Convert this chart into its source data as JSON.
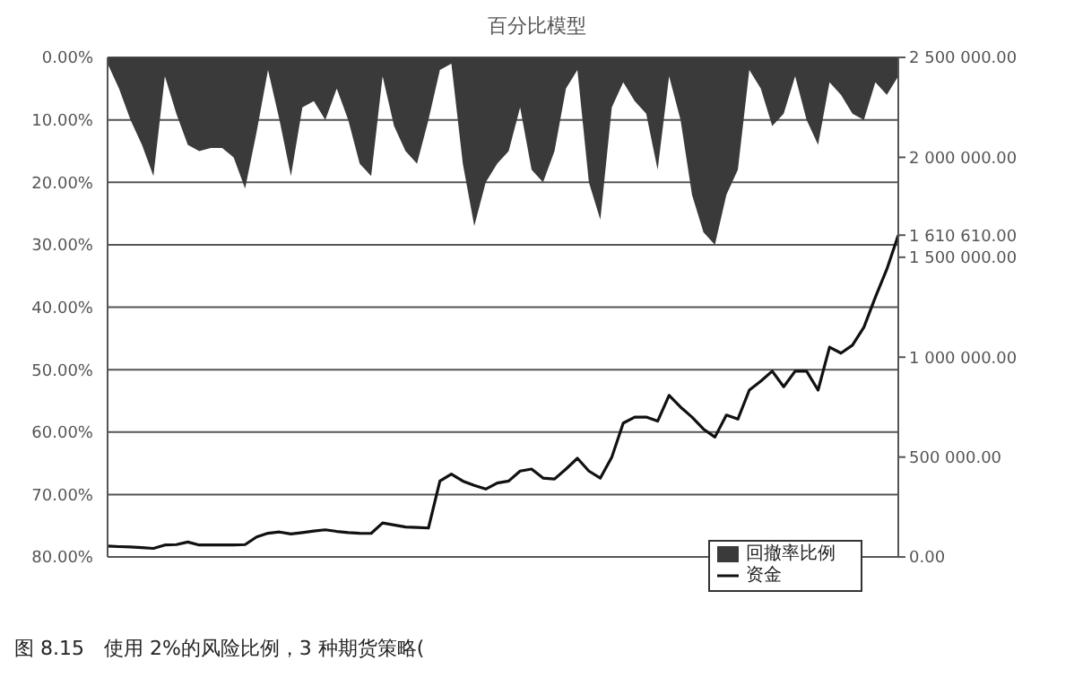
{
  "chart_data": {
    "type": "line",
    "title": "百分比模型",
    "categories": [
      null,
      null,
      null,
      null,
      null,
      null,
      null,
      null,
      null,
      null,
      null,
      null,
      null,
      null,
      null,
      null,
      null,
      null,
      null,
      null,
      null,
      null,
      null,
      null,
      null,
      null,
      null,
      null,
      null,
      null,
      null,
      null,
      null,
      null,
      null,
      null,
      null,
      null,
      null,
      null,
      null,
      null,
      null,
      null,
      null,
      null,
      null,
      null,
      null,
      null,
      null,
      null,
      null,
      null,
      null,
      null,
      null,
      null,
      null,
      null,
      null,
      null,
      null,
      null,
      null,
      null,
      null,
      null,
      null,
      null
    ],
    "series": [
      {
        "name": "回撤率比例",
        "type": "area",
        "color": "#3a3a3a",
        "values": [
          1,
          5,
          10,
          14,
          19,
          3,
          9,
          14,
          15,
          14.5,
          14.5,
          16,
          21,
          12,
          2,
          10,
          19,
          8,
          7,
          10,
          5,
          10,
          17,
          19,
          3,
          11,
          15,
          17,
          10,
          2,
          1,
          17,
          27,
          20,
          17,
          15,
          8,
          18,
          20,
          15,
          5,
          2,
          20,
          26,
          8,
          4,
          7,
          9,
          18,
          3,
          10,
          22,
          28,
          30,
          22,
          18,
          2,
          5,
          11,
          9,
          3,
          10,
          14,
          4,
          6,
          9,
          10,
          4,
          6,
          3
        ]
      },
      {
        "name": "资金",
        "axis": "y2",
        "color": "#111111",
        "values": [
          55000,
          52000,
          50000,
          47000,
          43000,
          60000,
          62000,
          75000,
          60000,
          60000,
          60000,
          60000,
          62000,
          100000,
          119000,
          125000,
          115000,
          122000,
          130000,
          136000,
          128000,
          122000,
          119000,
          118000,
          170000,
          160000,
          150000,
          148000,
          145000,
          380000,
          415000,
          380000,
          358000,
          340000,
          370000,
          380000,
          430000,
          440000,
          395000,
          390000,
          440000,
          494000,
          430000,
          395000,
          500000,
          670000,
          700000,
          700000,
          680000,
          809000,
          750000,
          700000,
          640000,
          600000,
          710000,
          690000,
          835000,
          880000,
          930000,
          852000,
          930000,
          930000,
          835000,
          1050000,
          1020000,
          1060000,
          1150000,
          1300000,
          1440000,
          1610610
        ]
      }
    ],
    "ylim": [
      80,
      0
    ],
    "yticks": [
      {
        "value": 0,
        "label": "0.00%"
      },
      {
        "value": 10,
        "label": "10.00%"
      },
      {
        "value": 20,
        "label": "20.00%"
      },
      {
        "value": 30,
        "label": "30.00%"
      },
      {
        "value": 40,
        "label": "40.00%"
      },
      {
        "value": 50,
        "label": "50.00%"
      },
      {
        "value": 60,
        "label": "60.00%"
      },
      {
        "value": 70,
        "label": "70.00%"
      },
      {
        "value": 80,
        "label": "80.00%"
      }
    ],
    "y2lim": [
      0,
      2500000
    ],
    "y2ticks": [
      {
        "value": 0,
        "label": "0.00"
      },
      {
        "value": 500000,
        "label": "500 000.00"
      },
      {
        "value": 1000000,
        "label": "1 000 000.00"
      },
      {
        "value": 1500000,
        "label": "1 500 000.00"
      },
      {
        "value": 1610610,
        "label": "1 610 610.00"
      },
      {
        "value": 2000000,
        "label": "2 000 000.00"
      },
      {
        "value": 2500000,
        "label": "2 500 000.00"
      }
    ],
    "grid": "y",
    "legend": "bottom right",
    "annotations": [
      "图 8.15　使用 2%的风险比例，3 种期货策略("
    ]
  }
}
